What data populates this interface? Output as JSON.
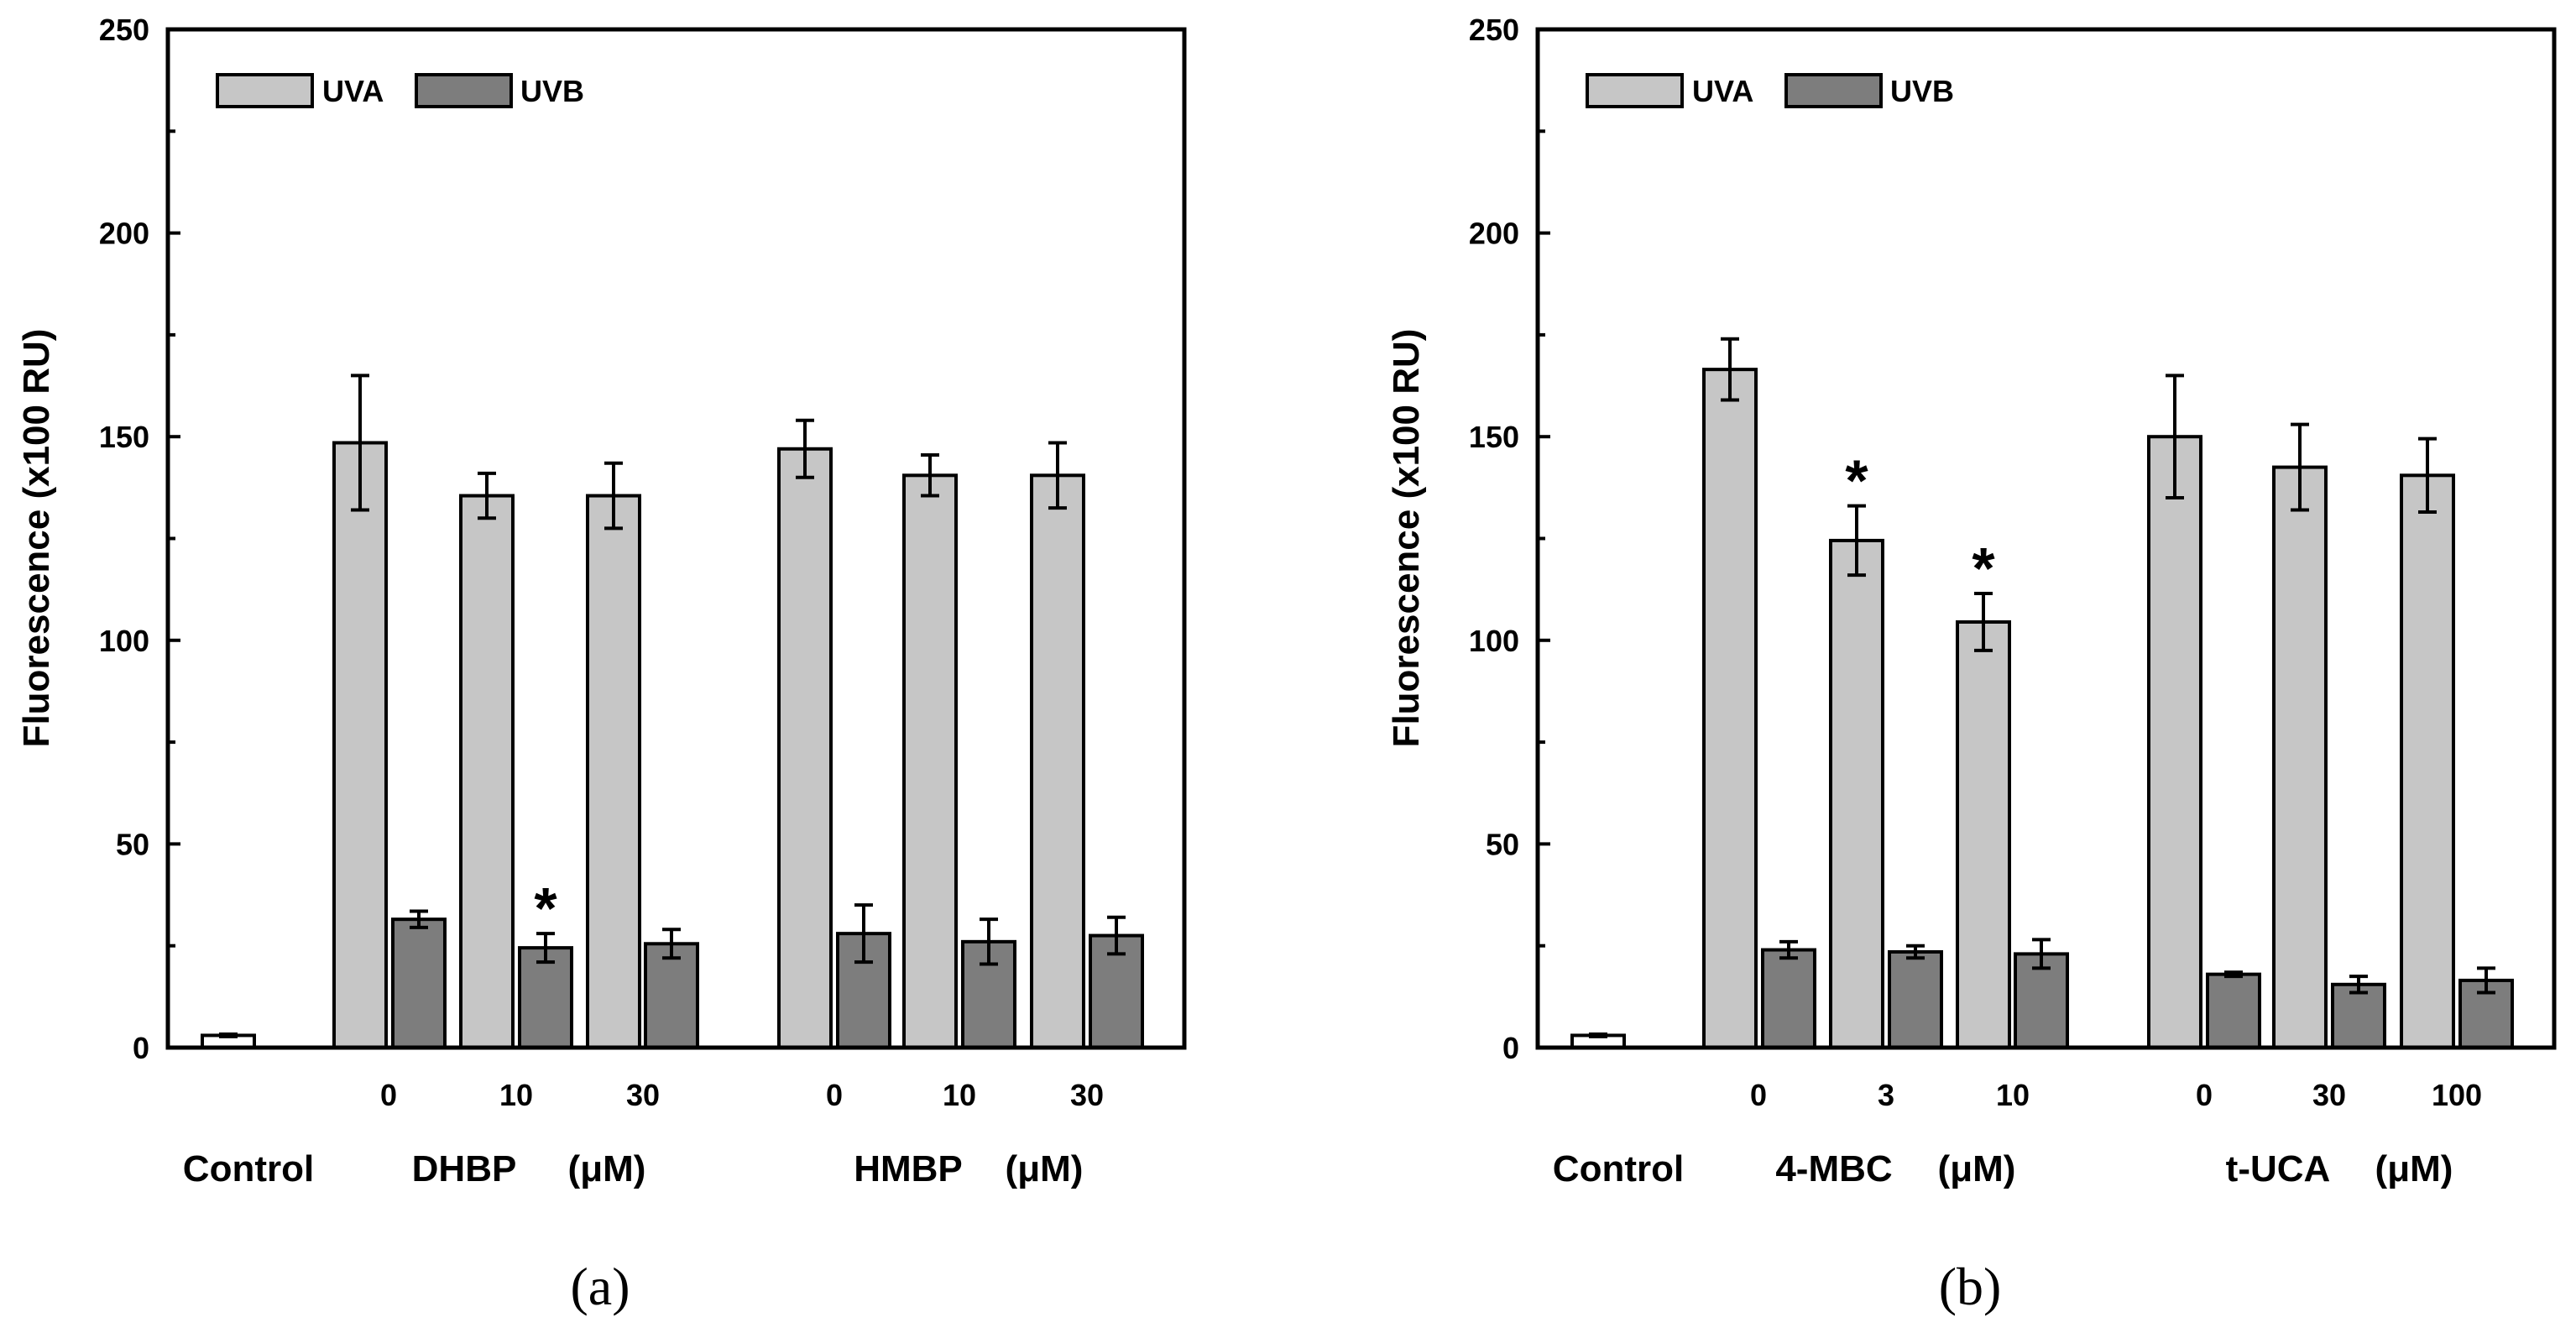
{
  "colors": {
    "uva": "#c6c6c6",
    "uvb": "#7d7d7d",
    "control": "#ffffff",
    "axis": "#000000"
  },
  "chart_data": [
    {
      "type": "bar",
      "caption": "(a)",
      "ylabel": "Fluorescence (x100 RU)",
      "ylim": [
        0,
        250
      ],
      "yticks": [
        "0",
        "50",
        "100",
        "150",
        "200",
        "250"
      ],
      "legend": {
        "placement": "top-left",
        "entries": [
          "UVA",
          "UVB"
        ]
      },
      "control": {
        "label": "Control",
        "value": 3,
        "err": 0.3
      },
      "groups": [
        {
          "compound": "DHBP",
          "unit": "(μM)",
          "doses": [
            "0",
            "10",
            "30"
          ],
          "series": [
            {
              "name": "UVA",
              "values": [
                148.5,
                135.5,
                135.5
              ],
              "errors": [
                16.5,
                5.5,
                8
              ],
              "significant": [
                false,
                false,
                false
              ]
            },
            {
              "name": "UVB",
              "values": [
                31.5,
                24.5,
                25.5
              ],
              "errors": [
                2,
                3.5,
                3.5
              ],
              "significant": [
                false,
                true,
                false
              ]
            }
          ]
        },
        {
          "compound": "HMBP",
          "unit": "(μM)",
          "doses": [
            "0",
            "10",
            "30"
          ],
          "series": [
            {
              "name": "UVA",
              "values": [
                147,
                140.5,
                140.5
              ],
              "errors": [
                7,
                5,
                8
              ],
              "significant": [
                false,
                false,
                false
              ]
            },
            {
              "name": "UVB",
              "values": [
                28,
                26,
                27.5
              ],
              "errors": [
                7,
                5.5,
                4.5
              ],
              "significant": [
                false,
                false,
                false
              ]
            }
          ]
        }
      ]
    },
    {
      "type": "bar",
      "caption": "(b)",
      "ylabel": "Fluorescence (x100 RU)",
      "ylim": [
        0,
        250
      ],
      "yticks": [
        "0",
        "50",
        "100",
        "150",
        "200",
        "250"
      ],
      "legend": {
        "placement": "top-left",
        "entries": [
          "UVA",
          "UVB"
        ]
      },
      "control": {
        "label": "Control",
        "value": 3,
        "err": 0.3
      },
      "groups": [
        {
          "compound": "4-MBC",
          "unit": "(μM)",
          "doses": [
            "0",
            "3",
            "10"
          ],
          "series": [
            {
              "name": "UVA",
              "values": [
                166.5,
                124.5,
                104.5
              ],
              "errors": [
                7.5,
                8.5,
                7
              ],
              "significant": [
                false,
                true,
                true
              ]
            },
            {
              "name": "UVB",
              "values": [
                24,
                23.5,
                23
              ],
              "errors": [
                2,
                1.5,
                3.5
              ],
              "significant": [
                false,
                false,
                false
              ]
            }
          ]
        },
        {
          "compound": "t-UCA",
          "unit": "(μM)",
          "doses": [
            "0",
            "30",
            "100"
          ],
          "series": [
            {
              "name": "UVA",
              "values": [
                150,
                142.5,
                140.5
              ],
              "errors": [
                15,
                10.5,
                9
              ],
              "significant": [
                false,
                false,
                false
              ]
            },
            {
              "name": "UVB",
              "values": [
                18,
                15.5,
                16.5
              ],
              "errors": [
                0.5,
                2,
                3
              ],
              "significant": [
                false,
                false,
                false
              ]
            }
          ]
        }
      ]
    }
  ]
}
